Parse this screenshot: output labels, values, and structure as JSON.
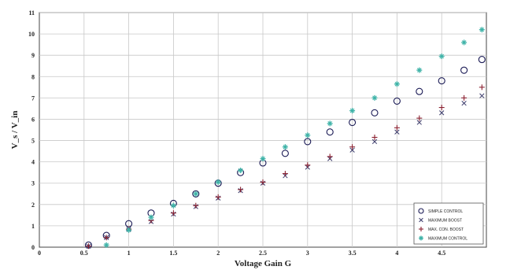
{
  "chart_data": {
    "type": "scatter",
    "xlabel": "Voltage Gain G",
    "ylabel": "V_s / V_in",
    "xlim": [
      0,
      5
    ],
    "ylim": [
      0,
      11
    ],
    "x_ticks": [
      "0",
      "0.5",
      "1",
      "1.5",
      "2",
      "2.5",
      "3",
      "3.5",
      "4",
      "4.5"
    ],
    "x_tick_values": [
      0,
      0.5,
      1,
      1.5,
      2,
      2.5,
      3,
      3.5,
      4,
      4.5
    ],
    "y_ticks": [
      "0",
      "1",
      "2",
      "3",
      "4",
      "5",
      "6",
      "7",
      "8",
      "9",
      "10",
      "11"
    ],
    "y_tick_values": [
      0,
      1,
      2,
      3,
      4,
      5,
      6,
      7,
      8,
      9,
      10,
      11
    ],
    "grid": true,
    "legend_position": "bottom-right",
    "series": [
      {
        "name": "SIMPLE CONTROL",
        "marker": "circle",
        "color": "#1a1a55",
        "x": [
          0.55,
          0.75,
          1.0,
          1.25,
          1.5,
          1.75,
          2.0,
          2.25,
          2.5,
          2.75,
          3.0,
          3.25,
          3.5,
          3.75,
          4.0,
          4.25,
          4.5,
          4.75,
          4.95
        ],
        "y": [
          0.1,
          0.55,
          1.1,
          1.6,
          2.05,
          2.5,
          3.0,
          3.5,
          3.95,
          4.4,
          4.95,
          5.4,
          5.85,
          6.3,
          6.85,
          7.3,
          7.8,
          8.3,
          8.8
        ]
      },
      {
        "name": "MAXIMUM BOOST",
        "marker": "x",
        "color": "#3a3a6a",
        "x": [
          0.55,
          0.75,
          1.0,
          1.25,
          1.5,
          1.75,
          2.0,
          2.25,
          2.5,
          2.75,
          3.0,
          3.25,
          3.5,
          3.75,
          4.0,
          4.25,
          4.5,
          4.75,
          4.95
        ],
        "y": [
          0.05,
          0.45,
          0.85,
          1.2,
          1.55,
          1.9,
          2.3,
          2.65,
          3.0,
          3.35,
          3.75,
          4.15,
          4.55,
          4.95,
          5.4,
          5.85,
          6.3,
          6.75,
          7.1
        ]
      },
      {
        "name": "MAX. CON. BOOST",
        "marker": "plus",
        "color": "#8b2030",
        "x": [
          0.55,
          0.75,
          1.0,
          1.25,
          1.5,
          1.75,
          2.0,
          2.25,
          2.5,
          2.75,
          3.0,
          3.25,
          3.5,
          3.75,
          4.0,
          4.25,
          4.5,
          4.75,
          4.95
        ],
        "y": [
          0.05,
          0.45,
          0.85,
          1.25,
          1.6,
          1.95,
          2.35,
          2.7,
          3.05,
          3.45,
          3.85,
          4.25,
          4.7,
          5.15,
          5.6,
          6.05,
          6.55,
          7.0,
          7.5
        ]
      },
      {
        "name": "MAXIMUM CONTROL",
        "marker": "star",
        "color": "#3fb3a8",
        "x": [
          0.75,
          1.0,
          1.25,
          1.5,
          1.75,
          2.0,
          2.25,
          2.5,
          2.75,
          3.0,
          3.25,
          3.5,
          3.75,
          4.0,
          4.25,
          4.5,
          4.75,
          4.95
        ],
        "y": [
          0.1,
          0.8,
          1.4,
          1.95,
          2.5,
          3.05,
          3.6,
          4.15,
          4.7,
          5.25,
          5.8,
          6.4,
          7.0,
          7.65,
          8.3,
          8.95,
          9.6,
          10.2
        ]
      }
    ]
  }
}
